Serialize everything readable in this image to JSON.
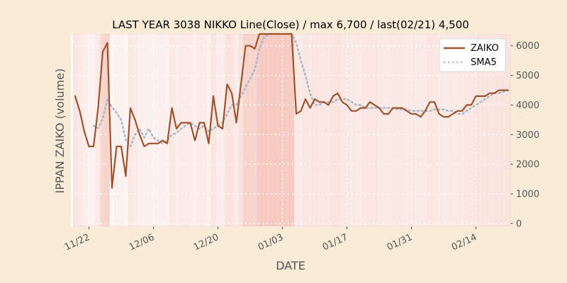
{
  "chart_data": {
    "type": "line",
    "title": "LAST YEAR 3038 NIKKO Line(Close) / max 6,700 / last(02/21) 4,500",
    "xlabel": "DATE",
    "ylabel": "IPPAN ZAIKO (volume)",
    "ylim": [
      -100,
      6400
    ],
    "yticks": [
      0,
      1000,
      2000,
      3000,
      4000,
      5000,
      6000
    ],
    "ytick_labels": [
      "0",
      "1000",
      "2000",
      "3000",
      "4000",
      "5000",
      "6000"
    ],
    "xtick_labels": [
      "11/22",
      "12/06",
      "12/20",
      "01/03",
      "01/17",
      "01/31",
      "02/14"
    ],
    "grid": true,
    "legend_position": "upper right",
    "x_dates": [
      "11/19",
      "11/20",
      "11/21",
      "11/22",
      "11/23",
      "11/24",
      "11/25",
      "11/26",
      "11/27",
      "11/28",
      "11/29",
      "11/30",
      "12/01",
      "12/02",
      "12/03",
      "12/04",
      "12/05",
      "12/06",
      "12/07",
      "12/08",
      "12/09",
      "12/10",
      "12/11",
      "12/12",
      "12/13",
      "12/14",
      "12/15",
      "12/16",
      "12/17",
      "12/18",
      "12/19",
      "12/20",
      "12/21",
      "12/22",
      "12/23",
      "12/24",
      "12/25",
      "12/26",
      "12/27",
      "12/28",
      "12/29",
      "12/30",
      "12/31",
      "01/01",
      "01/02",
      "01/03",
      "01/04",
      "01/05",
      "01/06",
      "01/07",
      "01/08",
      "01/09",
      "01/10",
      "01/11",
      "01/12",
      "01/13",
      "01/14",
      "01/15",
      "01/16",
      "01/17",
      "01/18",
      "01/19",
      "01/20",
      "01/21",
      "01/22",
      "01/23",
      "01/24",
      "01/25",
      "01/26",
      "01/27",
      "01/28",
      "01/29",
      "01/30",
      "01/31",
      "02/01",
      "02/02",
      "02/03",
      "02/04",
      "02/05",
      "02/06",
      "02/07",
      "02/08",
      "02/09",
      "02/10",
      "02/11",
      "02/12",
      "02/13",
      "02/14",
      "02/15",
      "02/16",
      "02/17",
      "02/18",
      "02/19",
      "02/20",
      "02/21"
    ],
    "series": [
      {
        "name": "ZAIKO",
        "color": "#a0522d",
        "style": "solid",
        "values": [
          4300,
          3800,
          3100,
          2600,
          2600,
          3900,
          5800,
          6100,
          1200,
          2600,
          2600,
          1600,
          3900,
          3500,
          3000,
          2600,
          2700,
          2700,
          2700,
          2800,
          2700,
          3900,
          3200,
          3400,
          3400,
          3400,
          2800,
          3400,
          3400,
          2700,
          4300,
          3300,
          3200,
          4700,
          4400,
          3400,
          4700,
          6000,
          6000,
          5900,
          6700,
          6700,
          6700,
          6700,
          6700,
          6700,
          6700,
          6700,
          3700,
          3800,
          4200,
          3900,
          4200,
          4100,
          4100,
          4000,
          4300,
          4400,
          4100,
          4000,
          3800,
          3800,
          3900,
          3900,
          4100,
          4000,
          3900,
          3700,
          3700,
          3900,
          3900,
          3900,
          3800,
          3700,
          3700,
          3600,
          3800,
          4100,
          4100,
          3700,
          3600,
          3600,
          3700,
          3800,
          3800,
          4000,
          4000,
          4300,
          4300,
          4300,
          4400,
          4400,
          4500,
          4500,
          4500
        ]
      },
      {
        "name": "SMA5",
        "color": "#a8b8c8",
        "style": "dotted",
        "values": [
          null,
          null,
          null,
          null,
          3300,
          3220,
          3540,
          4200,
          3920,
          3740,
          3500,
          2820,
          2600,
          3000,
          3200,
          2900,
          3200,
          2900,
          2800,
          2700,
          2800,
          3000,
          3060,
          3200,
          3300,
          3400,
          3300,
          3200,
          3300,
          3100,
          3200,
          3300,
          3400,
          3700,
          4000,
          4000,
          4300,
          4600,
          4900,
          5200,
          5900,
          6300,
          6400,
          6500,
          6600,
          6700,
          6700,
          6700,
          6100,
          5500,
          5000,
          4400,
          4000,
          4000,
          4100,
          4100,
          4100,
          4200,
          4200,
          4200,
          4100,
          4000,
          4000,
          3900,
          3900,
          3900,
          3900,
          3900,
          3900,
          3900,
          3850,
          3850,
          3850,
          3800,
          3800,
          3800,
          3800,
          3800,
          3850,
          3850,
          3850,
          3800,
          3800,
          3700,
          3700,
          3800,
          3900,
          4000,
          4100,
          4200,
          4300,
          4400,
          4400,
          4450,
          4500
        ]
      }
    ]
  }
}
